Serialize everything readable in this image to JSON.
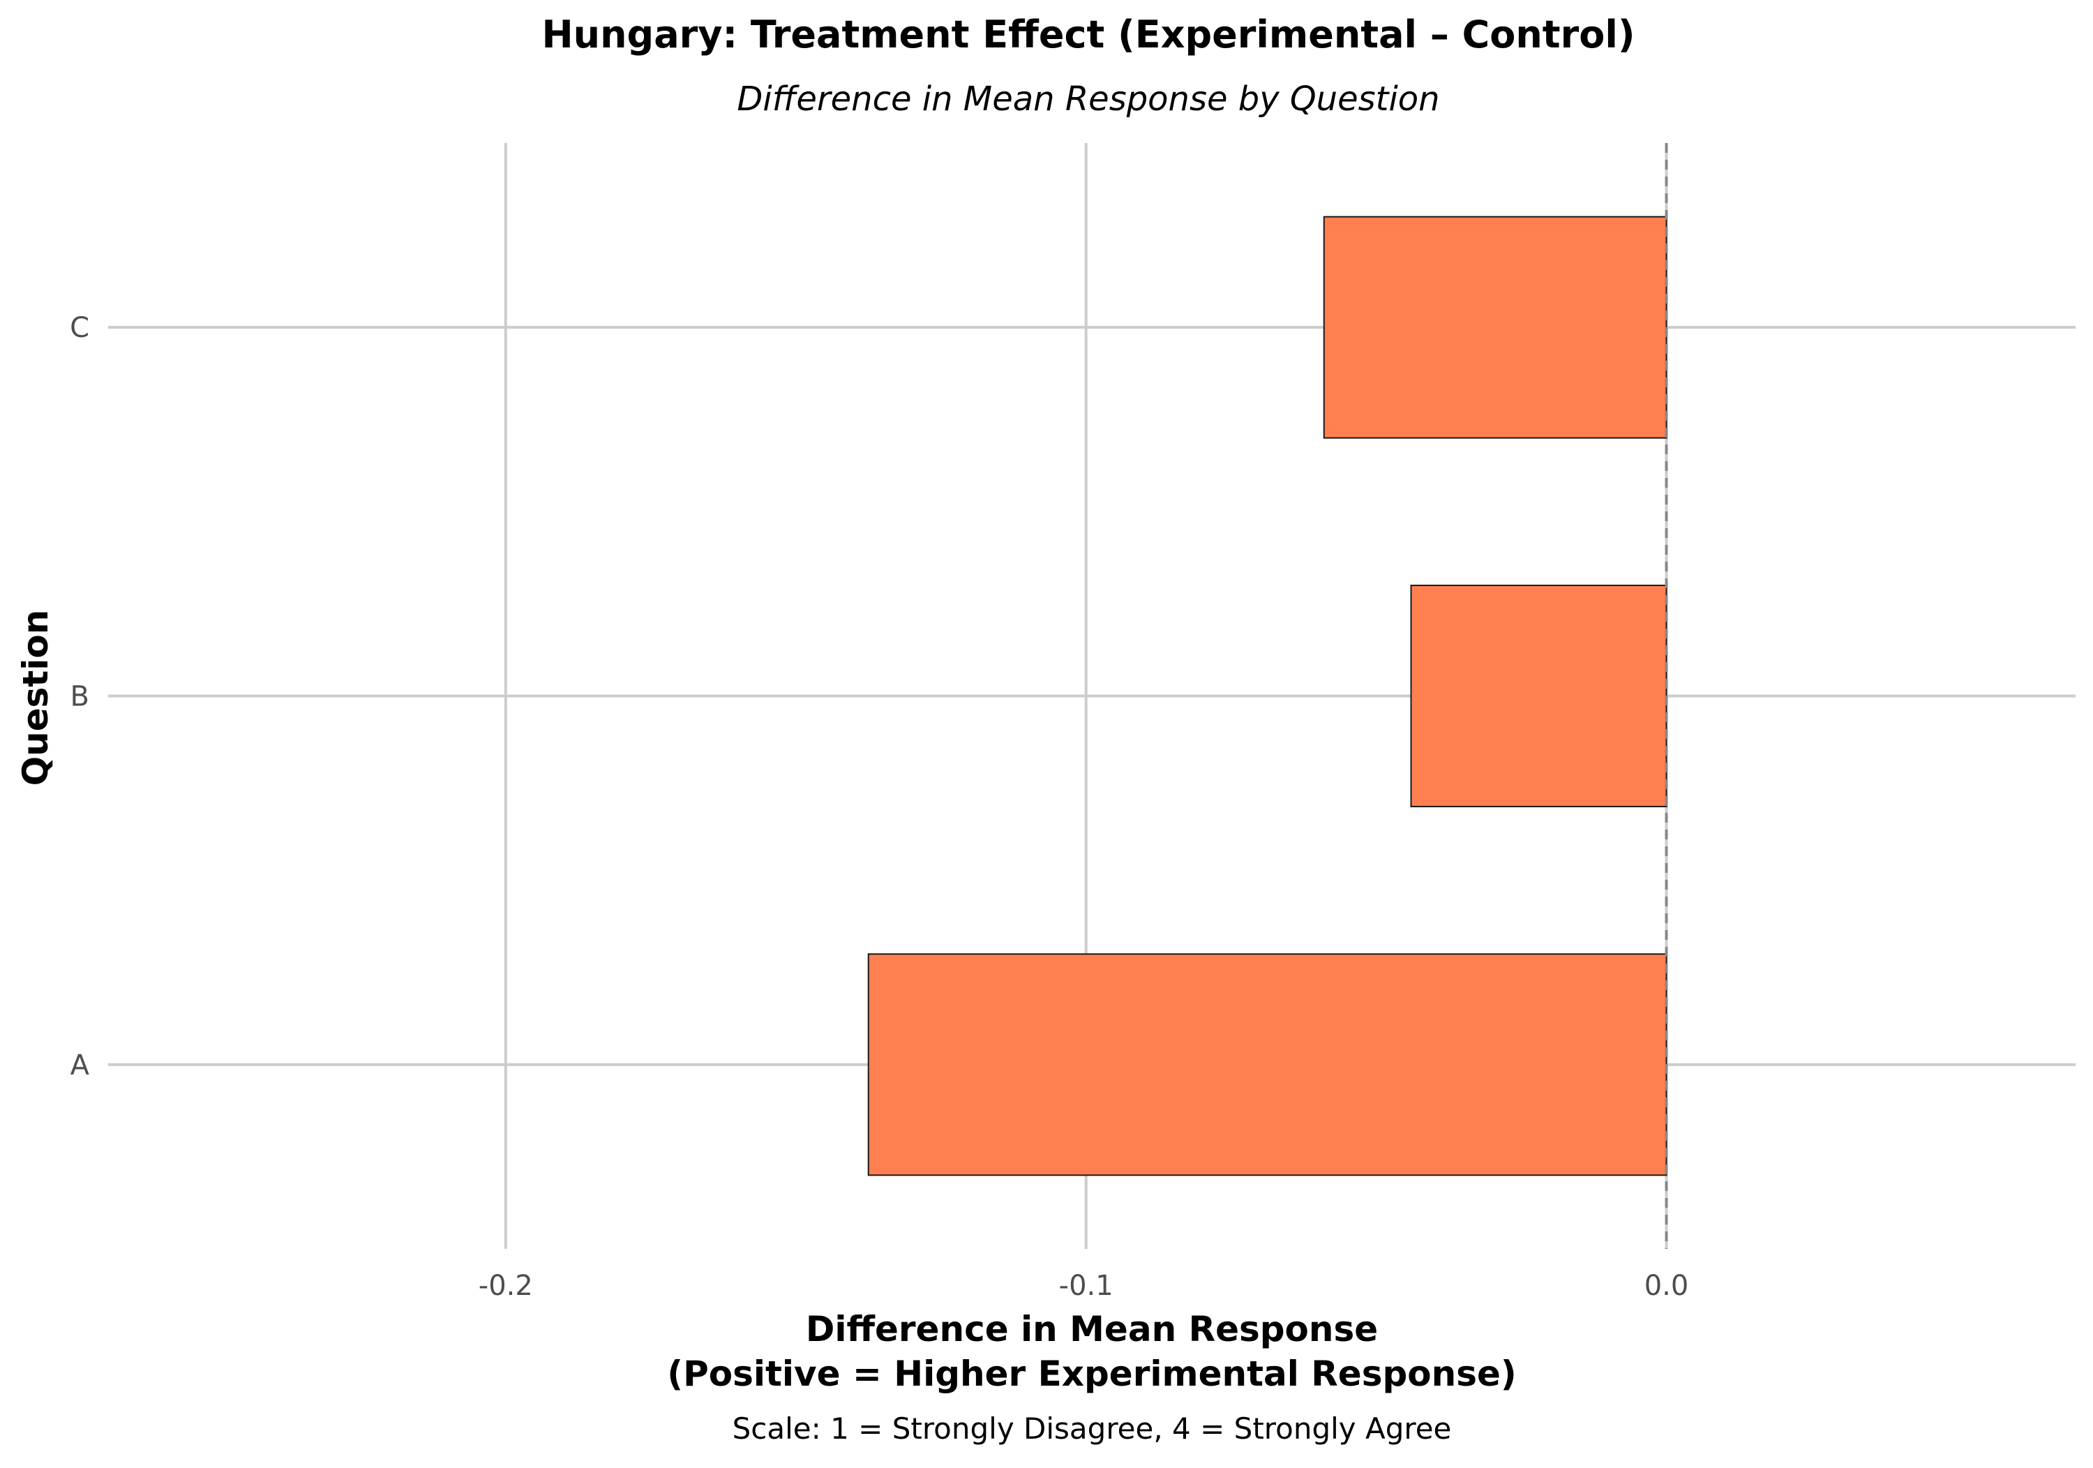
{
  "chart_data": {
    "type": "bar",
    "orientation": "horizontal",
    "title": "Hungary: Treatment Effect (Experimental – Control)",
    "subtitle": "Difference in Mean Response by Question",
    "xlabel_line1": "Difference in Mean Response",
    "xlabel_line2": "(Positive = Higher Experimental Response)",
    "caption": "Scale: 1 = Strongly Disagree, 4 = Strongly Agree",
    "ylabel": "Question",
    "categories": [
      "A",
      "B",
      "C"
    ],
    "values": [
      -0.1375,
      -0.044,
      -0.059
    ],
    "xlim": [
      -0.2685,
      0.0705
    ],
    "xticks": [
      -0.2,
      -0.1,
      0.0
    ],
    "xtick_labels": [
      "-0.2",
      "-0.1",
      "0.0"
    ],
    "reference_line": 0.0,
    "grid": true,
    "legend": "none",
    "colors": {
      "bar_fill": "#FF7F50",
      "bar_stroke": "#1a1a1a",
      "grid": "#cccccc",
      "reference_line": "#888888",
      "tick_text": "#4d4d4d",
      "title_text": "#000000"
    }
  }
}
